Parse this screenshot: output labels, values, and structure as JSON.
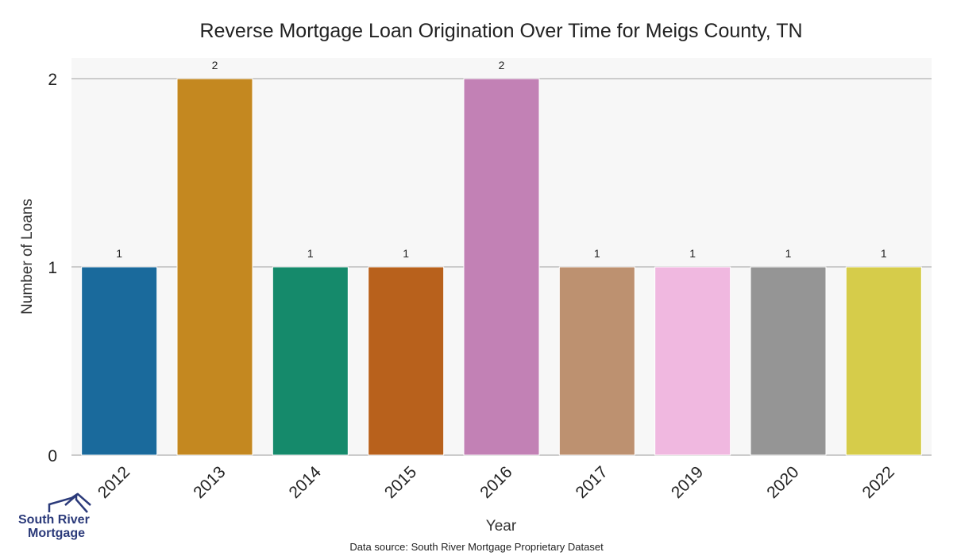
{
  "chart_data": {
    "type": "bar",
    "title": "Reverse Mortgage Loan Origination Over Time for Meigs County, TN",
    "xlabel": "Year",
    "ylabel": "Number of Loans",
    "categories": [
      "2012",
      "2013",
      "2014",
      "2015",
      "2016",
      "2017",
      "2019",
      "2020",
      "2022"
    ],
    "values": [
      1,
      2,
      1,
      1,
      2,
      1,
      1,
      1,
      1
    ],
    "data_labels": [
      "1",
      "2",
      "1",
      "1",
      "2",
      "1",
      "1",
      "1",
      "1"
    ],
    "colors": [
      "#1a6a9c",
      "#c48820",
      "#158a6b",
      "#b8611c",
      "#c281b5",
      "#bd9170",
      "#f0b8e0",
      "#959595",
      "#d6cc4a"
    ],
    "ylim": [
      0,
      2
    ],
    "yticks": [
      0,
      1,
      2
    ],
    "grid": true,
    "legend": "none"
  },
  "footer": {
    "source": "Data source: South River Mortgage Proprietary Dataset"
  },
  "logo": {
    "line1": "South River",
    "line2": "Mortgage"
  }
}
